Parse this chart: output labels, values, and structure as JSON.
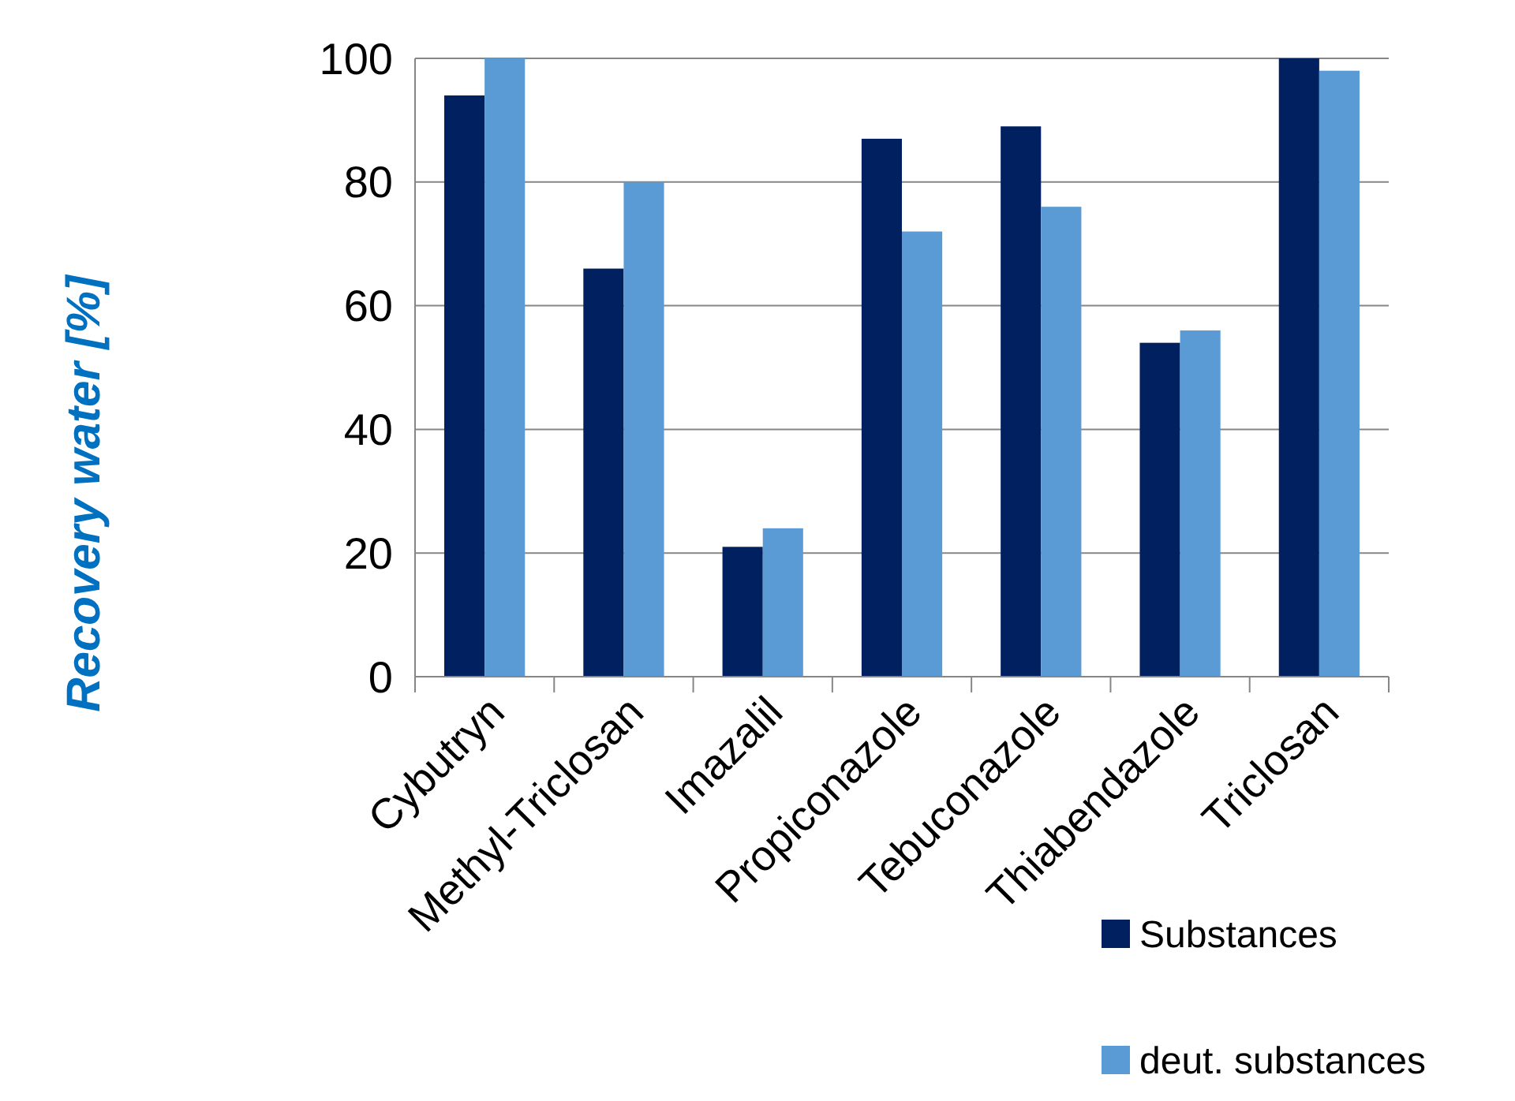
{
  "chart_data": {
    "type": "bar",
    "ylabel": "Recovery water [%]",
    "categories": [
      "Cybutryn",
      "Methyl-Triclosan",
      "Imazalil",
      "Propiconazole",
      "Tebuconazole",
      "Thiabendazole",
      "Triclosan"
    ],
    "series": [
      {
        "name": "Substances",
        "color": "#002060",
        "values": [
          94,
          66,
          21,
          87,
          89,
          54,
          100
        ]
      },
      {
        "name": "deut. substances",
        "color": "#5b9bd5",
        "values": [
          100,
          80,
          24,
          72,
          76,
          56,
          98
        ]
      }
    ],
    "ylim": [
      0,
      100
    ],
    "yticks": [
      0,
      20,
      40,
      60,
      80,
      100
    ],
    "grid": "y",
    "legend": "bottom right"
  }
}
